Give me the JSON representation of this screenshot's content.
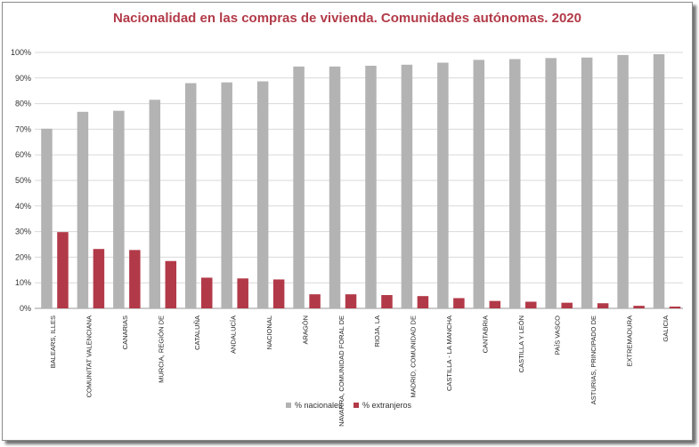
{
  "chart_data": {
    "type": "bar",
    "title": "Nacionalidad  en las compras de vivienda. Comunidades  autónomas.  2020",
    "categories": [
      "BALEARS, ILLES",
      "COMUNITAT VALENCIANA",
      "CANARIAS",
      "MURCIA, REGIÓN DE",
      "CATALUÑA",
      "ANDALUCÍA",
      "NACIONAL",
      "ARAGÓN",
      "NAVARRA, COMUNIDAD FORAL DE",
      "RIOJA, LA",
      "MADRID, COMUNIDAD DE",
      "CASTILLA - LA MANCHA",
      "CANTABRIA",
      "CASTILLA Y LEÓN",
      "PAÍS VASCO",
      "ASTURIAS, PRINCIPADO DE",
      "EXTREMADURA",
      "GALICIA"
    ],
    "series": [
      {
        "name": "% nacionales",
        "color": "#b3b3b3",
        "values": [
          70.2,
          76.8,
          77.2,
          81.5,
          88.0,
          88.3,
          88.7,
          94.5,
          94.5,
          94.8,
          95.2,
          96.0,
          97.1,
          97.4,
          97.8,
          98.0,
          99.0,
          99.3
        ]
      },
      {
        "name": "% extranjeros",
        "color": "#b23a48",
        "values": [
          29.8,
          23.2,
          22.8,
          18.5,
          12.0,
          11.7,
          11.3,
          5.5,
          5.5,
          5.2,
          4.8,
          4.0,
          2.9,
          2.6,
          2.2,
          2.0,
          1.0,
          0.7
        ]
      }
    ],
    "yticks": [
      "0%",
      "10%",
      "20%",
      "30%",
      "40%",
      "50%",
      "60%",
      "70%",
      "80%",
      "90%",
      "100%"
    ],
    "ylim": [
      0,
      100
    ],
    "grid": true,
    "legend": "bottom"
  }
}
